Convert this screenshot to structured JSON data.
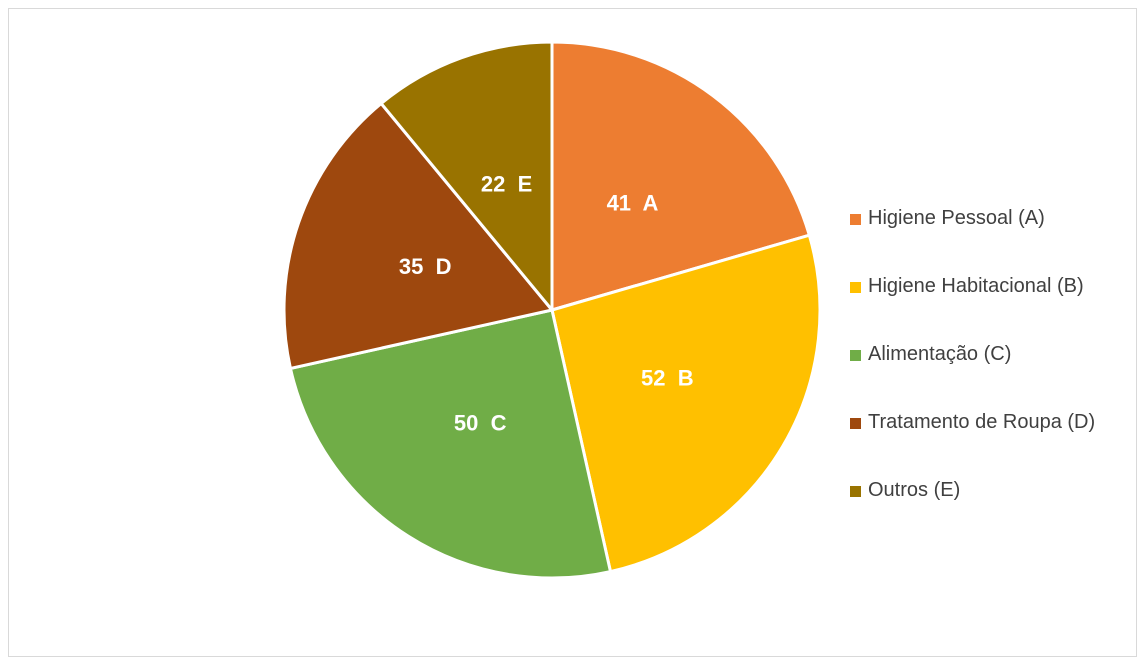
{
  "chart_data": {
    "type": "pie",
    "title": "",
    "categories": [
      "A",
      "B",
      "C",
      "D",
      "E"
    ],
    "values": [
      41,
      52,
      50,
      35,
      22
    ],
    "data_labels": [
      "41  A",
      "52  B",
      "50  C",
      "35  D",
      "22  E"
    ],
    "legend": {
      "placement": "right",
      "entries": [
        "Higiene Pessoal (A)",
        "Higiene Habitacional (B)",
        "Alimentação (C)",
        "Tratamento de Roupa (D)",
        "Outros (E)"
      ]
    },
    "colors": [
      "#ED7D31",
      "#FFC000",
      "#70AD47",
      "#9E480E",
      "#997300"
    ]
  }
}
